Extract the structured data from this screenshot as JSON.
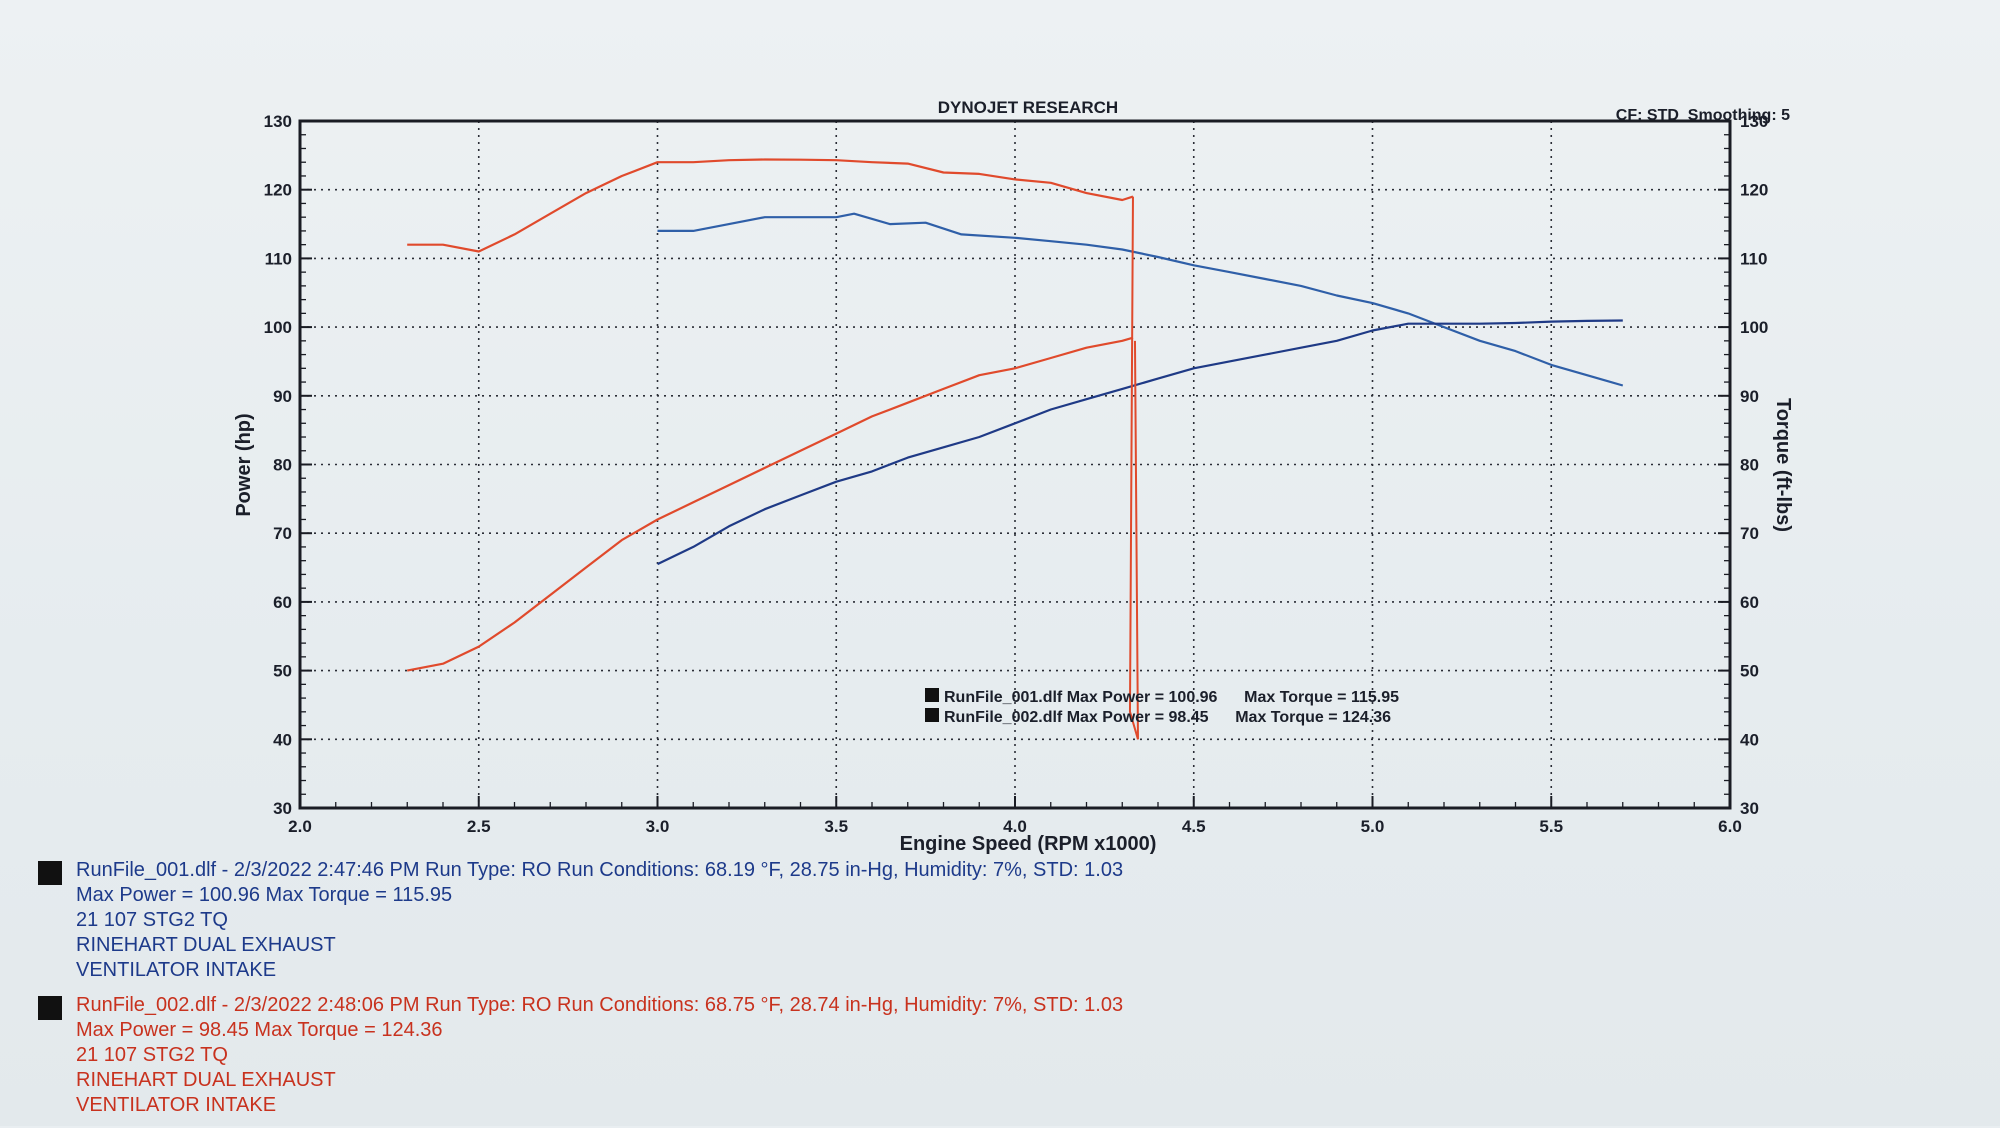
{
  "chart_data": {
    "type": "line",
    "title": "DYNOJET RESEARCH",
    "corner_info": "CF: STD  Smoothing: 5",
    "xlabel": "Engine Speed (RPM x1000)",
    "ylabel_left": "Power (hp)",
    "ylabel_right": "Torque (ft-lbs)",
    "xlim": [
      2.0,
      6.0
    ],
    "ylim": [
      30,
      130
    ],
    "x_ticks": [
      "2.0",
      "2.5",
      "3.0",
      "3.5",
      "4.0",
      "4.5",
      "5.0",
      "5.5",
      "6.0"
    ],
    "y_ticks": [
      "30",
      "40",
      "50",
      "60",
      "70",
      "80",
      "90",
      "100",
      "110",
      "120",
      "130"
    ],
    "grid": true,
    "legend": [
      "RunFile_001.dlf Max Power = 100.96      Max Torque = 115.95",
      "RunFile_002.dlf Max Power = 98.45      Max Torque = 124.36"
    ],
    "series": [
      {
        "run": "RunFile_001",
        "measure": "torque",
        "color": "#2f5fa8",
        "x": [
          3.0,
          3.1,
          3.2,
          3.3,
          3.4,
          3.5,
          3.55,
          3.65,
          3.75,
          3.85,
          4.0,
          4.1,
          4.2,
          4.3,
          4.4,
          4.5,
          4.6,
          4.7,
          4.8,
          4.9,
          5.0,
          5.1,
          5.2,
          5.3,
          5.4,
          5.5,
          5.6,
          5.7
        ],
        "y": [
          114,
          114,
          115,
          116,
          116,
          116,
          116.5,
          115,
          115.2,
          113.5,
          113,
          112.5,
          112,
          111.3,
          110.2,
          109,
          108,
          107,
          106,
          104.6,
          103.5,
          102,
          100,
          98,
          96.5,
          94.5,
          93,
          91.5
        ]
      },
      {
        "run": "RunFile_001",
        "measure": "power",
        "color": "#1f3a86",
        "x": [
          3.0,
          3.1,
          3.2,
          3.3,
          3.4,
          3.5,
          3.6,
          3.7,
          3.8,
          3.9,
          4.0,
          4.1,
          4.2,
          4.3,
          4.4,
          4.5,
          4.6,
          4.7,
          4.8,
          4.9,
          5.0,
          5.1,
          5.2,
          5.3,
          5.4,
          5.5,
          5.6,
          5.7
        ],
        "y": [
          65.5,
          68,
          71,
          73.5,
          75.5,
          77.5,
          79,
          81,
          82.5,
          84,
          86,
          88,
          89.5,
          91,
          92.5,
          94,
          95,
          96,
          97,
          98,
          99.5,
          100.5,
          100.5,
          100.5,
          100.6,
          100.8,
          100.9,
          100.96
        ]
      },
      {
        "run": "RunFile_002",
        "measure": "torque",
        "color": "#e04a2c",
        "x": [
          2.3,
          2.4,
          2.5,
          2.6,
          2.7,
          2.8,
          2.9,
          3.0,
          3.1,
          3.2,
          3.3,
          3.4,
          3.5,
          3.6,
          3.7,
          3.8,
          3.9,
          4.0,
          4.1,
          4.2,
          4.3,
          4.33
        ],
        "y": [
          112,
          112,
          111,
          113.5,
          116.5,
          119.5,
          122,
          124,
          124,
          124.3,
          124.4,
          124.36,
          124.3,
          124,
          123.8,
          122.5,
          122.3,
          121.5,
          121,
          119.5,
          118.5,
          119
        ]
      },
      {
        "run": "RunFile_002",
        "measure": "power",
        "color": "#e04a2c",
        "x": [
          2.3,
          2.4,
          2.5,
          2.6,
          2.7,
          2.8,
          2.9,
          3.0,
          3.1,
          3.2,
          3.3,
          3.4,
          3.5,
          3.6,
          3.7,
          3.8,
          3.9,
          4.0,
          4.1,
          4.2,
          4.3,
          4.33
        ],
        "y": [
          50,
          51,
          53.5,
          57,
          61,
          65,
          69,
          72,
          74.5,
          77,
          79.5,
          82,
          84.5,
          87,
          89,
          91,
          93,
          94,
          95.5,
          97,
          98,
          98.45
        ]
      }
    ]
  },
  "notes": {
    "run1": {
      "header": "RunFile_001.dlf - 2/3/2022 2:47:46 PM  Run Type: RO  Run Conditions: 68.19 °F, 28.75 in-Hg,  Humidity:  7%, STD: 1.03",
      "max_line": "Max Power = 100.96  Max Torque = 115.95",
      "note1": "21 107 STG2 TQ",
      "note2": "RINEHART DUAL EXHAUST",
      "note3": "VENTILATOR INTAKE"
    },
    "run2": {
      "header": "RunFile_002.dlf - 2/3/2022 2:48:06 PM  Run Type: RO  Run Conditions: 68.75 °F, 28.74 in-Hg,  Humidity:  7%, STD: 1.03",
      "max_line": "Max Power = 98.45  Max Torque = 124.36",
      "note1": "21 107 STG2 TQ",
      "note2": "RINEHART DUAL EXHAUST",
      "note3": "VENTILATOR INTAKE"
    }
  }
}
